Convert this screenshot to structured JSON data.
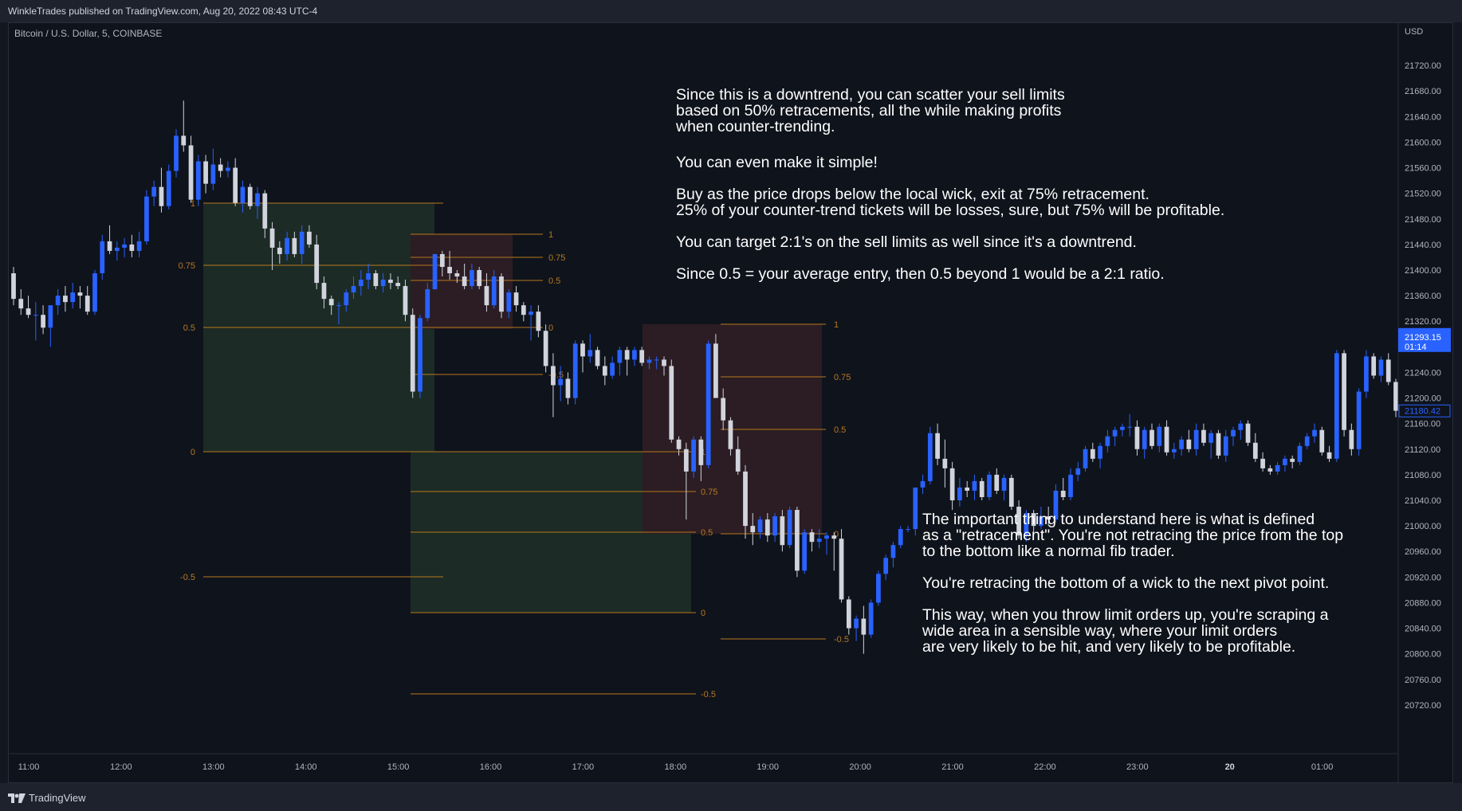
{
  "header": {
    "publisher": "WinkleTrades published on TradingView.com, Aug 20, 2022 08:43 UTC-4"
  },
  "chart": {
    "symbol": "Bitcoin / U.S. Dollar, 5, COINBASE",
    "currency": "USD",
    "last_price": "21293.15",
    "countdown": "01:14",
    "marker_price": "21180.42",
    "colors": {
      "up": "#2962ff",
      "down": "#d1d4dc",
      "fib": "#b7781e",
      "green_zone": "#1c2b25",
      "red_zone": "#2b1d23",
      "last_price_bg": "#2962ff"
    }
  },
  "notes": {
    "block1": "Since this is a downtrend, you can scatter your sell limits\nbased on 50% retracements, all the while making profits\nwhen counter-trending.",
    "block2": "You can even make it simple!\n\nBuy as the price drops below the local wick, exit at 75% retracement.\n25% of your counter-trend tickets will be losses, sure, but 75% will be profitable.\n\nYou can target 2:1's on the sell limits as well since it's a downtrend.\n\nSince 0.5 = your average entry, then 0.5 beyond 1 would be a 2:1 ratio.",
    "block3": "The important thing to understand here is what is defined\nas a \"retracement\". You're not retracing the price from the top\nto the bottom like a normal fib trader.\n\nYou're retracing the bottom of a wick to the next pivot point.\n\nThis way, when you throw limit orders up, you're scraping a\nwide area in a sensible way, where your limit orders\nare very likely to be hit, and very likely to be profitable."
  },
  "footer": {
    "brand": "TradingView"
  },
  "chart_data": {
    "type": "candlestick",
    "title": "Bitcoin / U.S. Dollar, 5, COINBASE",
    "y_unit": "USD",
    "ylim": [
      20690,
      21760
    ],
    "y_ticks": [
      21720,
      21680,
      21640,
      21600,
      21560,
      21520,
      21480,
      21440,
      21400,
      21360,
      21320,
      21240,
      21200,
      21160,
      21120,
      21080,
      21040,
      21000,
      20960,
      20920,
      20880,
      20840,
      20800,
      20760,
      20720
    ],
    "x_ticks": [
      "11:00",
      "12:00",
      "13:00",
      "14:00",
      "15:00",
      "16:00",
      "17:00",
      "18:00",
      "19:00",
      "20:00",
      "21:00",
      "22:00",
      "23:00",
      "20",
      "01:00"
    ],
    "x_range": [
      "10:45",
      "01:45"
    ],
    "candles": [
      [
        21395,
        21405,
        21345,
        21355
      ],
      [
        21355,
        21370,
        21330,
        21340
      ],
      [
        21340,
        21360,
        21325,
        21330
      ],
      [
        21330,
        21350,
        21290,
        21330
      ],
      [
        21330,
        21345,
        21300,
        21310
      ],
      [
        21310,
        21340,
        21280,
        21345
      ],
      [
        21345,
        21370,
        21330,
        21360
      ],
      [
        21360,
        21375,
        21335,
        21350
      ],
      [
        21350,
        21380,
        21340,
        21365
      ],
      [
        21365,
        21375,
        21340,
        21360
      ],
      [
        21360,
        21375,
        21330,
        21335
      ],
      [
        21335,
        21400,
        21330,
        21395
      ],
      [
        21395,
        21455,
        21385,
        21445
      ],
      [
        21445,
        21470,
        21425,
        21430
      ],
      [
        21430,
        21445,
        21415,
        21435
      ],
      [
        21435,
        21450,
        21420,
        21440
      ],
      [
        21440,
        21455,
        21420,
        21430
      ],
      [
        21430,
        21460,
        21420,
        21445
      ],
      [
        21445,
        21525,
        21440,
        21515
      ],
      [
        21515,
        21540,
        21500,
        21530
      ],
      [
        21530,
        21560,
        21490,
        21500
      ],
      [
        21500,
        21565,
        21495,
        21555
      ],
      [
        21555,
        21620,
        21545,
        21610
      ],
      [
        21610,
        21665,
        21585,
        21595
      ],
      [
        21595,
        21610,
        21505,
        21510
      ],
      [
        21510,
        21580,
        21500,
        21570
      ],
      [
        21570,
        21580,
        21520,
        21535
      ],
      [
        21535,
        21590,
        21525,
        21565
      ],
      [
        21565,
        21575,
        21545,
        21555
      ],
      [
        21555,
        21570,
        21545,
        21560
      ],
      [
        21560,
        21575,
        21500,
        21505
      ],
      [
        21505,
        21540,
        21490,
        21530
      ],
      [
        21530,
        21535,
        21495,
        21500
      ],
      [
        21500,
        21530,
        21480,
        21520
      ],
      [
        21520,
        21525,
        21450,
        21465
      ],
      [
        21465,
        21475,
        21400,
        21435
      ],
      [
        21435,
        21445,
        21410,
        21425
      ],
      [
        21425,
        21460,
        21415,
        21450
      ],
      [
        21450,
        21460,
        21420,
        21425
      ],
      [
        21425,
        21470,
        21410,
        21460
      ],
      [
        21460,
        21470,
        21435,
        21440
      ],
      [
        21440,
        21455,
        21370,
        21380
      ],
      [
        21380,
        21390,
        21340,
        21355
      ],
      [
        21355,
        21360,
        21330,
        21345
      ],
      [
        21345,
        21350,
        21315,
        21345
      ],
      [
        21345,
        21370,
        21335,
        21365
      ],
      [
        21365,
        21390,
        21355,
        21375
      ],
      [
        21375,
        21400,
        21360,
        21385
      ],
      [
        21385,
        21410,
        21370,
        21395
      ],
      [
        21395,
        21400,
        21370,
        21375
      ],
      [
        21375,
        21395,
        21365,
        21385
      ],
      [
        21385,
        21395,
        21370,
        21380
      ],
      [
        21380,
        21390,
        21370,
        21375
      ],
      [
        21375,
        21385,
        21320,
        21330
      ],
      [
        21330,
        21340,
        21200,
        21210
      ],
      [
        21210,
        21330,
        21200,
        21325
      ],
      [
        21325,
        21380,
        21320,
        21370
      ],
      [
        21370,
        21420,
        21370,
        21425
      ],
      [
        21425,
        21430,
        21390,
        21405
      ],
      [
        21405,
        21430,
        21385,
        21395
      ],
      [
        21395,
        21400,
        21380,
        21390
      ],
      [
        21390,
        21410,
        21370,
        21375
      ],
      [
        21375,
        21410,
        21370,
        21400
      ],
      [
        21400,
        21405,
        21370,
        21375
      ],
      [
        21375,
        21395,
        21335,
        21345
      ],
      [
        21345,
        21400,
        21340,
        21390
      ],
      [
        21390,
        21395,
        21325,
        21335
      ],
      [
        21335,
        21370,
        21325,
        21365
      ],
      [
        21365,
        21375,
        21335,
        21345
      ],
      [
        21345,
        21350,
        21320,
        21330
      ],
      [
        21330,
        21345,
        21290,
        21335
      ],
      [
        21335,
        21345,
        21295,
        21305
      ],
      [
        21305,
        21315,
        21240,
        21250
      ],
      [
        21250,
        21270,
        21170,
        21220
      ],
      [
        21220,
        21250,
        21195,
        21230
      ],
      [
        21230,
        21240,
        21190,
        21200
      ],
      [
        21200,
        21290,
        21190,
        21285
      ],
      [
        21285,
        21290,
        21240,
        21265
      ],
      [
        21265,
        21300,
        21255,
        21275
      ],
      [
        21275,
        21280,
        21245,
        21250
      ],
      [
        21250,
        21265,
        21220,
        21235
      ],
      [
        21235,
        21265,
        21230,
        21255
      ],
      [
        21255,
        21280,
        21235,
        21275
      ],
      [
        21275,
        21280,
        21235,
        21260
      ],
      [
        21260,
        21280,
        21250,
        21275
      ],
      [
        21275,
        21280,
        21250,
        21255
      ],
      [
        21255,
        21265,
        21245,
        21260
      ],
      [
        21260,
        21265,
        21245,
        21260
      ],
      [
        21260,
        21265,
        21235,
        21250
      ],
      [
        21250,
        21260,
        21130,
        21135
      ],
      [
        21135,
        21140,
        21110,
        21120
      ],
      [
        21120,
        21130,
        21010,
        21085
      ],
      [
        21085,
        21140,
        21075,
        21135
      ],
      [
        21135,
        21140,
        21070,
        21095
      ],
      [
        21095,
        21290,
        21090,
        21285
      ],
      [
        21285,
        21300,
        21200,
        21200
      ],
      [
        21200,
        21215,
        21150,
        21165
      ],
      [
        21165,
        21170,
        21110,
        21120
      ],
      [
        21120,
        21140,
        21080,
        21085
      ],
      [
        21085,
        21095,
        20980,
        21000
      ],
      [
        21000,
        21020,
        20970,
        20990
      ],
      [
        20990,
        21015,
        20980,
        21010
      ],
      [
        21010,
        21020,
        20975,
        20985
      ],
      [
        20985,
        21020,
        20975,
        21015
      ],
      [
        21015,
        21025,
        20960,
        20970
      ],
      [
        20970,
        21030,
        20965,
        21025
      ],
      [
        21025,
        21030,
        20920,
        20930
      ],
      [
        20930,
        20995,
        20925,
        20990
      ],
      [
        20990,
        20995,
        20960,
        20975
      ],
      [
        20975,
        20995,
        20965,
        20980
      ],
      [
        20980,
        20990,
        20955,
        20985
      ],
      [
        20985,
        20990,
        20930,
        20980
      ],
      [
        20980,
        20995,
        20880,
        20885
      ],
      [
        20885,
        20890,
        20830,
        20840
      ],
      [
        20840,
        20860,
        20820,
        20855
      ],
      [
        20855,
        20875,
        20800,
        20830
      ],
      [
        20830,
        20885,
        20825,
        20880
      ],
      [
        20880,
        20930,
        20875,
        20925
      ],
      [
        20925,
        20955,
        20915,
        20950
      ],
      [
        20950,
        20975,
        20935,
        20970
      ],
      [
        20970,
        21000,
        20965,
        20995
      ],
      [
        20995,
        21000,
        20990,
        20995
      ],
      [
        20995,
        21060,
        20985,
        21060
      ],
      [
        21060,
        21080,
        21050,
        21070
      ],
      [
        21070,
        21155,
        21065,
        21145
      ],
      [
        21145,
        21160,
        21095,
        21105
      ],
      [
        21105,
        21135,
        21060,
        21090
      ],
      [
        21090,
        21100,
        21025,
        21040
      ],
      [
        21040,
        21075,
        21030,
        21060
      ],
      [
        21060,
        21070,
        21045,
        21055
      ],
      [
        21055,
        21080,
        21040,
        21070
      ],
      [
        21070,
        21075,
        21040,
        21045
      ],
      [
        21045,
        21085,
        21040,
        21080
      ],
      [
        21080,
        21090,
        21050,
        21055
      ],
      [
        21055,
        21080,
        21040,
        21075
      ],
      [
        21075,
        21080,
        21025,
        21030
      ],
      [
        21030,
        21040,
        20980,
        20985
      ],
      [
        20985,
        21025,
        20975,
        21020
      ],
      [
        21020,
        21025,
        20990,
        21000
      ],
      [
        21000,
        21030,
        20995,
        21015
      ],
      [
        21015,
        21030,
        21000,
        21010
      ],
      [
        21010,
        21065,
        21005,
        21055
      ],
      [
        21055,
        21075,
        21040,
        21045
      ],
      [
        21045,
        21090,
        21040,
        21080
      ],
      [
        21080,
        21100,
        21070,
        21090
      ],
      [
        21090,
        21125,
        21085,
        21120
      ],
      [
        21120,
        21130,
        21100,
        21105
      ],
      [
        21105,
        21130,
        21090,
        21125
      ],
      [
        21125,
        21150,
        21115,
        21140
      ],
      [
        21140,
        21155,
        21125,
        21150
      ],
      [
        21150,
        21160,
        21140,
        21155
      ],
      [
        21155,
        21175,
        21140,
        21155
      ],
      [
        21155,
        21165,
        21110,
        21120
      ],
      [
        21120,
        21155,
        21105,
        21150
      ],
      [
        21150,
        21160,
        21120,
        21125
      ],
      [
        21125,
        21160,
        21115,
        21155
      ],
      [
        21155,
        21165,
        21110,
        21115
      ],
      [
        21115,
        21130,
        21105,
        21120
      ],
      [
        21120,
        21140,
        21110,
        21135
      ],
      [
        21135,
        21150,
        21115,
        21120
      ],
      [
        21120,
        21160,
        21110,
        21150
      ],
      [
        21150,
        21160,
        21125,
        21130
      ],
      [
        21130,
        21150,
        21105,
        21145
      ],
      [
        21145,
        21150,
        21105,
        21110
      ],
      [
        21110,
        21150,
        21100,
        21140
      ],
      [
        21140,
        21155,
        21125,
        21150
      ],
      [
        21150,
        21165,
        21135,
        21160
      ],
      [
        21160,
        21165,
        21125,
        21130
      ],
      [
        21130,
        21145,
        21100,
        21105
      ],
      [
        21105,
        21115,
        21085,
        21090
      ],
      [
        21090,
        21095,
        21080,
        21085
      ],
      [
        21085,
        21100,
        21080,
        21095
      ],
      [
        21095,
        21110,
        21085,
        21105
      ],
      [
        21105,
        21110,
        21090,
        21100
      ],
      [
        21100,
        21130,
        21095,
        21125
      ],
      [
        21125,
        21145,
        21120,
        21140
      ],
      [
        21140,
        21160,
        21130,
        21150
      ],
      [
        21150,
        21155,
        21110,
        21115
      ],
      [
        21115,
        21125,
        21100,
        21105
      ],
      [
        21105,
        21275,
        21100,
        21270
      ],
      [
        21270,
        21275,
        21140,
        21150
      ],
      [
        21150,
        21160,
        21110,
        21120
      ],
      [
        21120,
        21215,
        21110,
        21210
      ],
      [
        21210,
        21275,
        21200,
        21265
      ],
      [
        21265,
        21270,
        21230,
        21235
      ],
      [
        21235,
        21265,
        21225,
        21260
      ],
      [
        21260,
        21270,
        21220,
        21225
      ],
      [
        21225,
        21230,
        21170,
        21180
      ]
    ],
    "fib_levels": [
      {
        "name": "fib-green-1",
        "levels": [
          "1",
          "0.75",
          "0.5",
          "0",
          "-0.5"
        ]
      },
      {
        "name": "fib-red-1",
        "levels": [
          "1",
          "0.75",
          "0.5",
          "0",
          "-0.5"
        ]
      },
      {
        "name": "fib-green-2",
        "levels": [
          "1",
          "0.75",
          "0.5",
          "0",
          "-0.5"
        ]
      },
      {
        "name": "fib-red-2",
        "levels": [
          "1",
          "0.75",
          "0.5",
          "0",
          "-0.5"
        ]
      }
    ]
  }
}
